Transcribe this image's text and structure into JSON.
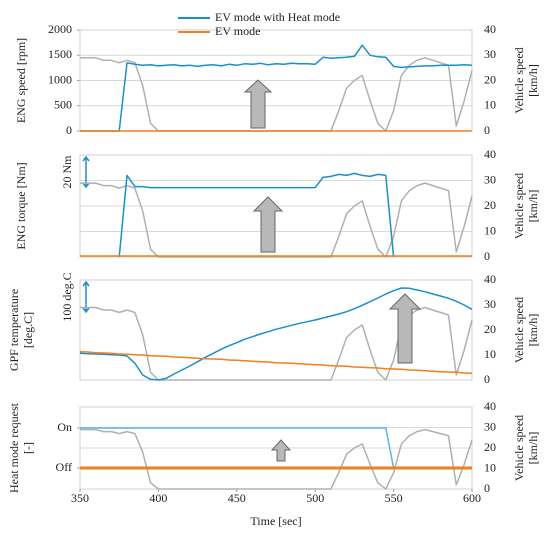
{
  "chart_data": [
    {
      "type": "line",
      "ylabel": [
        "ENG speed [rpm]"
      ],
      "y2label": [
        "Vehicle speed",
        "[km/h]"
      ],
      "grid": true,
      "legend": "top",
      "ylim": [
        0,
        2000
      ],
      "yticks": [
        0,
        500,
        1000,
        1500,
        2000
      ],
      "y2lim": [
        0,
        40
      ],
      "y2ticks": [
        0,
        10,
        20,
        30,
        40
      ],
      "xlim": [
        350,
        600
      ],
      "x": [
        350,
        355,
        360,
        365,
        370,
        375,
        380,
        385,
        390,
        395,
        400,
        405,
        410,
        415,
        420,
        425,
        430,
        435,
        440,
        445,
        450,
        455,
        460,
        465,
        470,
        475,
        480,
        485,
        490,
        495,
        500,
        505,
        510,
        515,
        520,
        525,
        530,
        535,
        540,
        545,
        550,
        555,
        560,
        565,
        570,
        575,
        580,
        585,
        590,
        595,
        600
      ],
      "series": [
        {
          "name": "EV mode with Heat mode",
          "color": "#1a8fc9",
          "values": [
            0,
            0,
            0,
            0,
            0,
            0,
            1350,
            1320,
            1300,
            1310,
            1290,
            1300,
            1310,
            1290,
            1300,
            1280,
            1300,
            1310,
            1290,
            1320,
            1300,
            1330,
            1320,
            1340,
            1310,
            1330,
            1320,
            1340,
            1330,
            1330,
            1320,
            1460,
            1440,
            1450,
            1460,
            1480,
            1700,
            1500,
            1470,
            1460,
            1280,
            1260,
            1270,
            1280,
            1290,
            1290,
            1300,
            1300,
            1300,
            1310,
            1300
          ]
        },
        {
          "name": "EV mode",
          "color": "#f07f1e",
          "values": [
            0,
            0,
            0,
            0,
            0,
            0,
            0,
            0,
            0,
            0,
            0,
            0,
            0,
            0,
            0,
            0,
            0,
            0,
            0,
            0,
            0,
            0,
            0,
            0,
            0,
            0,
            0,
            0,
            0,
            0,
            0,
            0,
            0,
            0,
            0,
            0,
            0,
            0,
            0,
            0,
            0,
            0,
            0,
            0,
            0,
            0,
            0,
            0,
            0,
            0,
            0
          ]
        },
        {
          "color": "#b0b0b0",
          "axis": "y2",
          "values": [
            29,
            29,
            29,
            28,
            28,
            27,
            28,
            27,
            18,
            3,
            0,
            0,
            0,
            0,
            0,
            0,
            0,
            0,
            0,
            0,
            0,
            0,
            0,
            0,
            0,
            0,
            0,
            0,
            0,
            0,
            0,
            0,
            0,
            8,
            17,
            20,
            22,
            12,
            3,
            0,
            8,
            22,
            26,
            28,
            29,
            28,
            27,
            26,
            2,
            12,
            24
          ]
        }
      ]
    },
    {
      "type": "line",
      "ylabel": [
        "ENG torque [Nm]"
      ],
      "y2label": [
        "Vehicle speed",
        "[km/h]"
      ],
      "grid": true,
      "annotation": "20 Nm",
      "ylim": [
        0,
        100
      ],
      "yticks": [],
      "y2lim": [
        0,
        40
      ],
      "y2ticks": [
        0,
        10,
        20,
        30,
        40
      ],
      "xlim": [
        350,
        600
      ],
      "x": [
        350,
        355,
        360,
        365,
        370,
        375,
        380,
        385,
        390,
        395,
        400,
        405,
        410,
        415,
        420,
        425,
        430,
        435,
        440,
        445,
        450,
        455,
        460,
        465,
        470,
        475,
        480,
        485,
        490,
        495,
        500,
        505,
        510,
        515,
        520,
        525,
        530,
        535,
        540,
        545,
        550,
        555,
        560,
        565,
        570,
        575,
        580,
        585,
        590,
        595,
        600
      ],
      "series": [
        {
          "color": "#1a8fc9",
          "values": [
            null,
            null,
            null,
            null,
            null,
            0,
            80,
            69,
            69,
            68,
            68,
            68,
            68,
            68,
            68,
            68,
            68,
            68,
            68,
            68,
            68,
            68,
            68,
            68,
            68,
            68,
            68,
            68,
            68,
            68,
            68,
            78,
            79,
            81,
            80,
            82,
            80,
            79,
            81,
            80,
            0,
            null,
            null,
            null,
            null,
            null,
            null,
            null,
            null,
            null,
            null
          ]
        },
        {
          "color": "#f07f1e",
          "values": [
            1,
            1,
            1,
            1,
            1,
            1,
            1,
            1,
            1,
            1,
            1,
            1,
            1,
            1,
            1,
            1,
            1,
            1,
            1,
            1,
            1,
            1,
            1,
            1,
            1,
            1,
            1,
            1,
            1,
            1,
            1,
            1,
            1,
            1,
            1,
            1,
            1,
            1,
            1,
            1,
            1,
            1,
            1,
            1,
            1,
            1,
            1,
            1,
            1,
            1,
            1
          ]
        },
        {
          "color": "#b0b0b0",
          "axis": "y2",
          "values": [
            29,
            29,
            29,
            28,
            28,
            27,
            28,
            27,
            18,
            3,
            0,
            0,
            0,
            0,
            0,
            0,
            0,
            0,
            0,
            0,
            0,
            0,
            0,
            0,
            0,
            0,
            0,
            0,
            0,
            0,
            0,
            0,
            0,
            8,
            17,
            20,
            22,
            12,
            3,
            0,
            8,
            22,
            26,
            28,
            29,
            28,
            27,
            26,
            2,
            12,
            24
          ]
        }
      ]
    },
    {
      "type": "line",
      "ylabel": [
        "GPF temperature",
        "[deg.C]"
      ],
      "y2label": [
        "Vehicle speed",
        "[km/h]"
      ],
      "grid": false,
      "annotation": "100 deg.C",
      "ylim": [
        0,
        300
      ],
      "yticks": [],
      "y2lim": [
        0,
        40
      ],
      "y2ticks": [
        0,
        10,
        20,
        30,
        40
      ],
      "xlim": [
        350,
        600
      ],
      "x": [
        350,
        355,
        360,
        365,
        370,
        375,
        380,
        385,
        390,
        395,
        400,
        405,
        410,
        415,
        420,
        425,
        430,
        435,
        440,
        445,
        450,
        455,
        460,
        465,
        470,
        475,
        480,
        485,
        490,
        495,
        500,
        505,
        510,
        515,
        520,
        525,
        530,
        535,
        540,
        545,
        550,
        555,
        560,
        565,
        570,
        575,
        580,
        585,
        590,
        595,
        600
      ],
      "series": [
        {
          "color": "#1a8fc9",
          "values": [
            80,
            79,
            78,
            77,
            76,
            75,
            72,
            50,
            15,
            2,
            0,
            5,
            18,
            30,
            42,
            55,
            68,
            80,
            92,
            103,
            112,
            122,
            130,
            138,
            145,
            152,
            158,
            164,
            170,
            175,
            180,
            186,
            192,
            198,
            205,
            214,
            224,
            235,
            246,
            258,
            268,
            276,
            275,
            270,
            265,
            258,
            252,
            245,
            236,
            225,
            212
          ]
        },
        {
          "color": "#f07f1e",
          "values": [
            85,
            84,
            82,
            81,
            80,
            78,
            77,
            76,
            75,
            73,
            72,
            71,
            69,
            68,
            67,
            65,
            64,
            63,
            62,
            60,
            59,
            58,
            56,
            55,
            54,
            52,
            51,
            50,
            49,
            47,
            46,
            45,
            43,
            42,
            41,
            39,
            38,
            37,
            36,
            34,
            33,
            32,
            30,
            29,
            28,
            26,
            25,
            24,
            23,
            21,
            20
          ]
        },
        {
          "color": "#b0b0b0",
          "axis": "y2",
          "values": [
            29,
            29,
            29,
            28,
            28,
            27,
            28,
            27,
            18,
            3,
            0,
            0,
            0,
            0,
            0,
            0,
            0,
            0,
            0,
            0,
            0,
            0,
            0,
            0,
            0,
            0,
            0,
            0,
            0,
            0,
            0,
            0,
            0,
            8,
            17,
            20,
            22,
            12,
            3,
            0,
            8,
            22,
            26,
            28,
            29,
            28,
            27,
            26,
            2,
            12,
            24
          ]
        }
      ]
    },
    {
      "type": "line",
      "ylabel": [
        "Heat mode request",
        "[-]"
      ],
      "y2label": [
        "Vehicle speed",
        "[km/h]"
      ],
      "grid": true,
      "xlabel": "Time [sec]",
      "ylim": [
        -0.525,
        1.525
      ],
      "yticks": [
        {
          "value": 1,
          "label": "On"
        },
        {
          "value": 0,
          "label": "Off"
        }
      ],
      "y2lim": [
        0,
        40
      ],
      "y2ticks": [
        0,
        10,
        20,
        30,
        40
      ],
      "xlim": [
        350,
        600
      ],
      "xticks": [
        350,
        400,
        450,
        500,
        550,
        600
      ],
      "x": [
        350,
        355,
        360,
        365,
        370,
        375,
        380,
        385,
        390,
        395,
        400,
        405,
        410,
        415,
        420,
        425,
        430,
        435,
        440,
        445,
        450,
        455,
        460,
        465,
        470,
        475,
        480,
        485,
        490,
        495,
        500,
        505,
        510,
        515,
        520,
        525,
        530,
        535,
        540,
        545,
        550,
        555,
        560,
        565,
        570,
        575,
        580,
        585,
        590,
        595,
        600
      ],
      "series": [
        {
          "color": "#5ab4e0",
          "values": [
            1,
            1,
            1,
            1,
            1,
            1,
            1,
            1,
            1,
            1,
            1,
            1,
            1,
            1,
            1,
            1,
            1,
            1,
            1,
            1,
            1,
            1,
            1,
            1,
            1,
            1,
            1,
            1,
            1,
            1,
            1,
            1,
            1,
            1,
            1,
            1,
            1,
            1,
            1,
            1,
            0,
            0,
            0,
            0,
            0,
            0,
            0,
            0,
            0,
            0,
            0
          ]
        },
        {
          "color": "#f07f1e",
          "width": 3,
          "values": [
            0,
            0,
            0,
            0,
            0,
            0,
            0,
            0,
            0,
            0,
            0,
            0,
            0,
            0,
            0,
            0,
            0,
            0,
            0,
            0,
            0,
            0,
            0,
            0,
            0,
            0,
            0,
            0,
            0,
            0,
            0,
            0,
            0,
            0,
            0,
            0,
            0,
            0,
            0,
            0,
            0,
            0,
            0,
            0,
            0,
            0,
            0,
            0,
            0,
            0,
            0
          ]
        },
        {
          "color": "#b0b0b0",
          "axis": "y2",
          "values": [
            29,
            29,
            29,
            28,
            28,
            27,
            28,
            27,
            18,
            3,
            0,
            0,
            0,
            0,
            0,
            0,
            0,
            0,
            0,
            0,
            0,
            0,
            0,
            0,
            0,
            0,
            0,
            0,
            0,
            0,
            0,
            0,
            0,
            8,
            17,
            20,
            22,
            12,
            3,
            0,
            8,
            22,
            26,
            28,
            29,
            28,
            27,
            26,
            2,
            12,
            24
          ]
        }
      ]
    }
  ]
}
